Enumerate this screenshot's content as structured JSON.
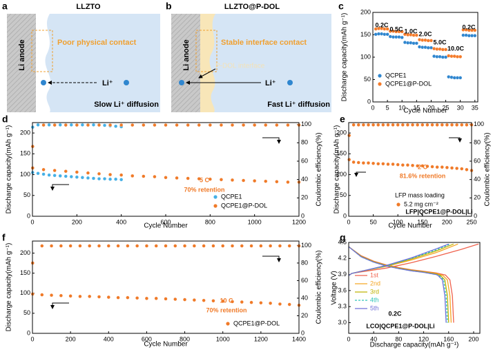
{
  "diagrams": [
    {
      "label": "a",
      "title": "LLZTO",
      "anode": "Li anode",
      "contact": "Poor physical contact",
      "ion": "Li⁺",
      "diffusion": "Slow Li⁺ diffusion"
    },
    {
      "label": "b",
      "title": "LLZTO@P-DOL",
      "anode": "Li anode",
      "contact": "Stable interface contact",
      "interface": "P-DOL interface",
      "ion": "Li⁺",
      "diffusion": "Fast Li⁺ diffusion"
    }
  ],
  "chart_data": [
    {
      "label": "c",
      "type": "scatter",
      "xlabel": "Cycle Number",
      "ylabel": "Discharge capacity(mAh g⁻¹)",
      "xlim": [
        0,
        36
      ],
      "ylim": [
        0,
        200
      ],
      "xticks": [
        0,
        5,
        10,
        15,
        20,
        25,
        30,
        35
      ],
      "yticks": [
        0,
        50,
        100,
        150,
        200
      ],
      "legend": "lower left",
      "series": [
        {
          "name": "QCPE1",
          "color": "#2f86cf",
          "x": [
            1,
            2,
            3,
            4,
            5,
            6,
            7,
            8,
            9,
            10,
            11,
            12,
            13,
            14,
            15,
            16,
            17,
            18,
            19,
            20,
            21,
            22,
            23,
            24,
            25,
            26,
            27,
            28,
            29,
            30,
            31,
            32,
            33,
            34,
            35
          ],
          "values": [
            151,
            152,
            152,
            151,
            151,
            146,
            145,
            145,
            145,
            144,
            133,
            132,
            132,
            131,
            131,
            123,
            122,
            122,
            121,
            121,
            102,
            101,
            101,
            100,
            100,
            56,
            55,
            54,
            54,
            54,
            149,
            149,
            148,
            148,
            148
          ]
        },
        {
          "name": "QCPE1@P-DOL",
          "color": "#f47b2a",
          "x": [
            1,
            2,
            3,
            4,
            5,
            6,
            7,
            8,
            9,
            10,
            11,
            12,
            13,
            14,
            15,
            16,
            17,
            18,
            19,
            20,
            21,
            22,
            23,
            24,
            25,
            26,
            27,
            28,
            29,
            30,
            31,
            32,
            33,
            34,
            35
          ],
          "values": [
            163,
            164,
            164,
            163,
            163,
            158,
            158,
            157,
            157,
            157,
            151,
            150,
            150,
            149,
            149,
            139,
            138,
            138,
            137,
            137,
            119,
            118,
            118,
            117,
            117,
            103,
            102,
            102,
            101,
            101,
            161,
            161,
            160,
            160,
            160
          ]
        }
      ],
      "annotations": [
        "0.2C",
        "0.5C",
        "1.0C",
        "2.0C",
        "5.0C",
        "10.0C",
        "0.2C"
      ]
    },
    {
      "label": "d",
      "type": "scatter",
      "xlabel": "Cycle Number",
      "ylabel": "Discharge capacity(mAh g⁻¹)",
      "y2label": "Coulombic efficiency(%)",
      "xlim": [
        0,
        1200
      ],
      "ylim": [
        0,
        225
      ],
      "y2lim": [
        0,
        102
      ],
      "xticks": [
        0,
        200,
        400,
        600,
        800,
        1000,
        1200
      ],
      "yticks": [
        0,
        50,
        100,
        150,
        200
      ],
      "y2ticks": [
        0,
        20,
        40,
        60,
        80,
        100
      ],
      "legend": "lower right",
      "series": [
        {
          "name": "QCPE1",
          "color": "#45b0e6",
          "x": [
            1,
            25,
            50,
            75,
            100,
            125,
            150,
            175,
            200,
            225,
            250,
            275,
            300,
            325,
            350,
            375,
            400
          ],
          "values": [
            105,
            103,
            101,
            99,
            98,
            97,
            96,
            95,
            94,
            93,
            92,
            91,
            90,
            90,
            89,
            89,
            88
          ]
        },
        {
          "name": "QCPE1@P-DOL",
          "color": "#f07a28",
          "x": [
            1,
            50,
            100,
            150,
            200,
            250,
            300,
            350,
            400,
            450,
            500,
            550,
            600,
            650,
            700,
            750,
            800,
            850,
            900,
            950,
            1000,
            1050,
            1100,
            1150,
            1200
          ],
          "values": [
            116,
            112,
            110,
            108,
            106,
            104,
            102,
            100,
            99,
            97,
            96,
            95,
            93,
            92,
            91,
            90,
            89,
            88,
            87,
            86,
            85,
            84,
            83,
            82,
            82
          ]
        },
        {
          "color": "#45b0e6",
          "axis": "y2",
          "x": [
            1,
            25,
            50,
            75,
            100,
            125,
            150,
            175,
            200,
            225,
            250,
            275,
            300,
            325,
            350,
            375,
            400
          ],
          "values": [
            97,
            99.5,
            99.5,
            99.5,
            99.5,
            99.5,
            99.5,
            99.5,
            99.5,
            99.5,
            99.5,
            99.5,
            99.5,
            99,
            98.5,
            98,
            97.5
          ]
        },
        {
          "color": "#f07a28",
          "axis": "y2",
          "x": [
            1,
            50,
            100,
            150,
            200,
            250,
            300,
            350,
            400,
            450,
            500,
            550,
            600,
            650,
            700,
            750,
            800,
            850,
            900,
            950,
            1000,
            1050,
            1100,
            1150,
            1200
          ],
          "values": [
            76,
            99.3,
            99.3,
            99.3,
            99.3,
            99.3,
            99.3,
            99.3,
            99.3,
            99.3,
            99.3,
            99.3,
            99.3,
            99.3,
            99.3,
            99.3,
            99.3,
            99.3,
            99.3,
            99.3,
            99.3,
            99.3,
            99.3,
            99.3,
            99.3
          ]
        }
      ],
      "annotations": [
        "5 C",
        "70% retention"
      ]
    },
    {
      "label": "e",
      "type": "scatter",
      "xlabel": "Cycle Number",
      "ylabel": "Discharge capacity(mAh g⁻¹)",
      "y2label": "Coulombic efficiency(%)",
      "xlim": [
        0,
        250
      ],
      "ylim": [
        0,
        225
      ],
      "y2lim": [
        0,
        102
      ],
      "xticks": [
        0,
        50,
        100,
        150,
        200,
        250
      ],
      "yticks": [
        0,
        50,
        100,
        150,
        200
      ],
      "y2ticks": [
        0,
        20,
        40,
        60,
        80,
        100
      ],
      "legend": "lower center",
      "legend_title": "LFP mass loading",
      "series": [
        {
          "name": "5.2 mg cm⁻²",
          "color": "#f07a28",
          "x": [
            1,
            10,
            20,
            30,
            40,
            50,
            60,
            70,
            80,
            90,
            100,
            110,
            120,
            130,
            140,
            150,
            160,
            170,
            180,
            190,
            200,
            210,
            220,
            230,
            240,
            250
          ],
          "values": [
            136,
            130,
            129,
            128,
            128,
            127,
            126,
            126,
            125,
            125,
            124,
            123,
            123,
            122,
            121,
            121,
            120,
            119,
            118,
            118,
            117,
            116,
            115,
            114,
            112,
            110
          ]
        },
        {
          "color": "#f07a28",
          "axis": "y2",
          "x": [
            1,
            10,
            20,
            30,
            40,
            50,
            60,
            70,
            80,
            90,
            100,
            110,
            120,
            130,
            140,
            150,
            160,
            170,
            180,
            190,
            200,
            210,
            220,
            230,
            240,
            250
          ],
          "values": [
            88,
            99.5,
            99.5,
            99.5,
            99.5,
            99.5,
            99.5,
            99.5,
            99.5,
            99.5,
            99.5,
            99.5,
            99.5,
            99.5,
            99.5,
            99.5,
            99.5,
            99.5,
            99.5,
            99.5,
            99.5,
            99.5,
            99.5,
            99.5,
            99.5,
            99.5
          ]
        }
      ],
      "annotations": [
        "2 C",
        "81.6% retention",
        "LFP|QCPE1@P-DOL|Li"
      ]
    },
    {
      "label": "f",
      "type": "scatter",
      "xlabel": "Cycle Number",
      "ylabel": "Discharge capacity(mAh g⁻¹)",
      "y2label": "Coulombic efficiency(%)",
      "xlim": [
        0,
        1400
      ],
      "ylim": [
        0,
        230
      ],
      "y2lim": [
        0,
        105
      ],
      "xticks": [
        0,
        200,
        400,
        600,
        800,
        1000,
        1200,
        1400
      ],
      "yticks": [
        0,
        50,
        100,
        150,
        200
      ],
      "y2ticks": [
        0,
        20,
        40,
        60,
        80,
        100
      ],
      "legend": "lower right",
      "series": [
        {
          "name": "QCPE1@P-DOL",
          "color": "#f07a28",
          "x": [
            1,
            50,
            100,
            150,
            200,
            250,
            300,
            350,
            400,
            450,
            500,
            550,
            600,
            650,
            700,
            750,
            800,
            850,
            900,
            950,
            1000,
            1050,
            1100,
            1150,
            1200,
            1250,
            1300,
            1350,
            1400
          ],
          "values": [
            98,
            96,
            95,
            94,
            93,
            92,
            92,
            91,
            90,
            89,
            89,
            88,
            87,
            87,
            86,
            85,
            84,
            83,
            82,
            81,
            80,
            79,
            78,
            77,
            76,
            75,
            73,
            72,
            70
          ]
        },
        {
          "color": "#f07a28",
          "axis": "y2",
          "x": [
            1,
            50,
            100,
            150,
            200,
            250,
            300,
            350,
            400,
            450,
            500,
            550,
            600,
            650,
            700,
            750,
            800,
            850,
            900,
            950,
            1000,
            1050,
            1100,
            1150,
            1200,
            1250,
            1300,
            1350,
            1400
          ],
          "values": [
            80,
            99.5,
            99.5,
            99.5,
            99.5,
            99.5,
            99.5,
            99.5,
            99.5,
            99.5,
            99.5,
            99.5,
            99.5,
            99.5,
            99.5,
            99.5,
            99.5,
            99.5,
            99.5,
            99.5,
            99.5,
            99.5,
            99.5,
            99.5,
            99.5,
            99.5,
            99.5,
            99.5,
            99.5
          ]
        }
      ],
      "annotations": [
        "10 C",
        "70% retention"
      ]
    },
    {
      "label": "g",
      "type": "line",
      "xlabel": "Discharge capacity(mAh g⁻¹)",
      "ylabel": "Voltage (V)",
      "xlim": [
        0,
        210
      ],
      "ylim": [
        2.8,
        4.5
      ],
      "xticks": [
        0,
        40,
        80,
        120,
        160,
        200
      ],
      "yticks": [
        {
          "value": 3,
          "label": "3.0"
        },
        3.3,
        3.6,
        3.9,
        4.2,
        4.5
      ],
      "legend": "center left",
      "series": [
        {
          "name": "1st",
          "color": "#f0624d",
          "x": [
            0,
            20,
            40,
            60,
            80,
            100,
            120,
            140,
            155,
            162,
            166,
            168
          ],
          "values": [
            4.42,
            4.25,
            4.15,
            4.08,
            4.03,
            3.99,
            3.96,
            3.93,
            3.89,
            3.8,
            3.5,
            3.0
          ],
          "charge_x": [
            0,
            5,
            20,
            60,
            100,
            140,
            180,
            208
          ],
          "charge_values": [
            3.88,
            3.92,
            3.95,
            4.02,
            4.12,
            4.24,
            4.37,
            4.47
          ]
        },
        {
          "name": "2nd",
          "color": "#f5a623",
          "x": [
            0,
            20,
            40,
            60,
            80,
            100,
            120,
            140,
            151,
            158,
            162,
            164
          ],
          "values": [
            4.42,
            4.24,
            4.14,
            4.07,
            4.02,
            3.98,
            3.95,
            3.92,
            3.88,
            3.8,
            3.5,
            3.0
          ],
          "charge_x": [
            0,
            5,
            20,
            60,
            100,
            140,
            175
          ],
          "charge_values": [
            3.88,
            3.92,
            3.96,
            4.05,
            4.17,
            4.31,
            4.47
          ]
        },
        {
          "name": "3rd",
          "color": "#bfb200",
          "x": [
            0,
            20,
            40,
            60,
            80,
            100,
            120,
            140,
            147,
            154,
            158,
            160
          ],
          "values": [
            4.42,
            4.24,
            4.14,
            4.07,
            4.02,
            3.98,
            3.95,
            3.91,
            3.88,
            3.8,
            3.5,
            3.0
          ],
          "charge_x": [
            0,
            5,
            20,
            60,
            100,
            140,
            168
          ],
          "charge_values": [
            3.88,
            3.92,
            3.96,
            4.06,
            4.19,
            4.34,
            4.47
          ]
        },
        {
          "name": "4th",
          "color": "#2cc4b8",
          "linestyle": "dashed",
          "x": [
            0,
            20,
            40,
            60,
            80,
            100,
            120,
            140,
            145,
            152,
            156,
            158
          ],
          "values": [
            4.42,
            4.23,
            4.13,
            4.06,
            4.01,
            3.97,
            3.94,
            3.9,
            3.88,
            3.8,
            3.5,
            3.0
          ],
          "charge_x": [
            0,
            5,
            20,
            60,
            100,
            140,
            163
          ],
          "charge_values": [
            3.88,
            3.92,
            3.96,
            4.06,
            4.2,
            4.36,
            4.47
          ]
        },
        {
          "name": "5th",
          "color": "#6f6fd8",
          "x": [
            0,
            20,
            40,
            60,
            80,
            100,
            120,
            140,
            143,
            150,
            154,
            156
          ],
          "values": [
            4.42,
            4.23,
            4.13,
            4.06,
            4.01,
            3.97,
            3.94,
            3.9,
            3.88,
            3.8,
            3.5,
            3.0
          ],
          "charge_x": [
            0,
            5,
            20,
            60,
            100,
            140,
            160
          ],
          "charge_values": [
            3.88,
            3.92,
            3.96,
            4.07,
            4.21,
            4.38,
            4.47
          ]
        }
      ],
      "annotations": [
        "0.2C",
        "LCO|QCPE1@P-DOL|Li"
      ]
    }
  ]
}
